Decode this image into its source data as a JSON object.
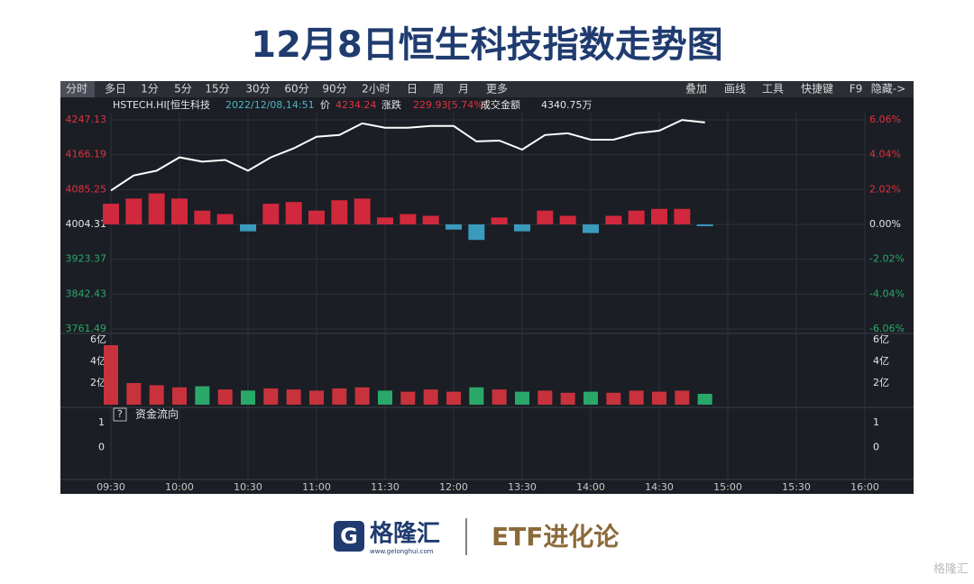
{
  "chart_data": {
    "type": "line",
    "title": "12月8日恒生科技指数走势图",
    "info": [
      "HSTECH.HI[恒生科技",
      "2022/12/08,14:51",
      "价",
      "4234.24",
      "涨跌",
      "229.93[5.74%]",
      "成交金额",
      "4340.75万"
    ],
    "categories": [
      "09:30",
      null,
      null,
      "10:00",
      null,
      null,
      "10:30",
      null,
      null,
      "11:00",
      null,
      null,
      "11:30",
      null,
      null,
      "12:00",
      null,
      null,
      "13:30",
      null,
      null,
      "14:00",
      null,
      null,
      "14:30",
      null,
      null,
      "15:00",
      null,
      null,
      "15:30",
      null,
      null,
      "16:00"
    ],
    "series": [
      {
        "name": "HSTECH.HI",
        "color": "#ffffff",
        "values": [
          4083,
          4118,
          4129,
          4160,
          4150,
          4154,
          4129,
          4160,
          4181,
          4208,
          4212,
          4239,
          4229,
          4229,
          4233,
          4233,
          4197,
          4199,
          4178,
          4212,
          4216,
          4201,
          4201,
          4216,
          4222,
          4247,
          4241,
          null,
          null,
          null,
          null,
          null,
          null,
          null
        ]
      }
    ],
    "ylim": [
      3761.49,
      4247.13
    ],
    "yticks": [
      4247.13,
      4166.19,
      4085.25,
      4004.31,
      3923.37,
      3842.43,
      3761.49
    ],
    "y2lim": [
      -6.06,
      6.06
    ],
    "y2ticks": [
      {
        "value": 6.06,
        "label": "6.06%"
      },
      {
        "value": 4.04,
        "label": "4.04%"
      },
      {
        "value": 2.02,
        "label": "2.02%"
      },
      {
        "value": 0,
        "label": "0.00%"
      },
      {
        "value": -2.02,
        "label": "-2.02%"
      },
      {
        "value": -4.04,
        "label": "-4.04%"
      },
      {
        "value": -6.06,
        "label": "-6.06%"
      }
    ],
    "change_bars": {
      "axis": "y2",
      "up_color": "#d0283c",
      "down_color": "#3a9bbd",
      "values": [
        1.2,
        1.5,
        1.8,
        1.5,
        0.8,
        0.6,
        -0.4,
        1.2,
        1.3,
        0.8,
        1.4,
        1.5,
        0.4,
        0.6,
        0.5,
        -0.3,
        -0.9,
        0.4,
        -0.4,
        0.8,
        0.5,
        -0.5,
        0.5,
        0.8,
        0.9,
        0.9,
        -0.1
      ]
    },
    "volume": {
      "up_color": "#c8323c",
      "down_color": "#2aa86a",
      "ylim": [
        0,
        6
      ],
      "yticks": [
        {
          "value": 6,
          "label": "6亿"
        },
        {
          "value": 4,
          "label": "4亿"
        },
        {
          "value": 2,
          "label": "2亿"
        }
      ],
      "values": [
        5.5,
        2.0,
        1.8,
        1.6,
        1.7,
        1.4,
        1.3,
        1.5,
        1.4,
        1.3,
        1.5,
        1.6,
        1.3,
        1.2,
        1.4,
        1.2,
        1.6,
        1.4,
        1.2,
        1.3,
        1.1,
        1.2,
        1.1,
        1.3,
        1.2,
        1.3,
        1.0
      ]
    },
    "flow": {
      "title": "资金流向",
      "help": "?",
      "ylim": [
        -1.2,
        1.5
      ],
      "yticks": [
        1,
        0
      ]
    },
    "grid": true
  },
  "toolbar": {
    "left": [
      "分时",
      "多日",
      "1分",
      "5分",
      "15分",
      "30分",
      "60分",
      "90分",
      "2小时",
      "日",
      "周",
      "月",
      "更多"
    ],
    "right": [
      "叠加",
      "画线",
      "工具",
      "快捷键",
      "F9",
      "隐藏->"
    ]
  },
  "footer": {
    "brand": "格隆汇",
    "url": "www.gelonghui.com",
    "column": "ETF进化论",
    "watermark": "格隆汇"
  }
}
